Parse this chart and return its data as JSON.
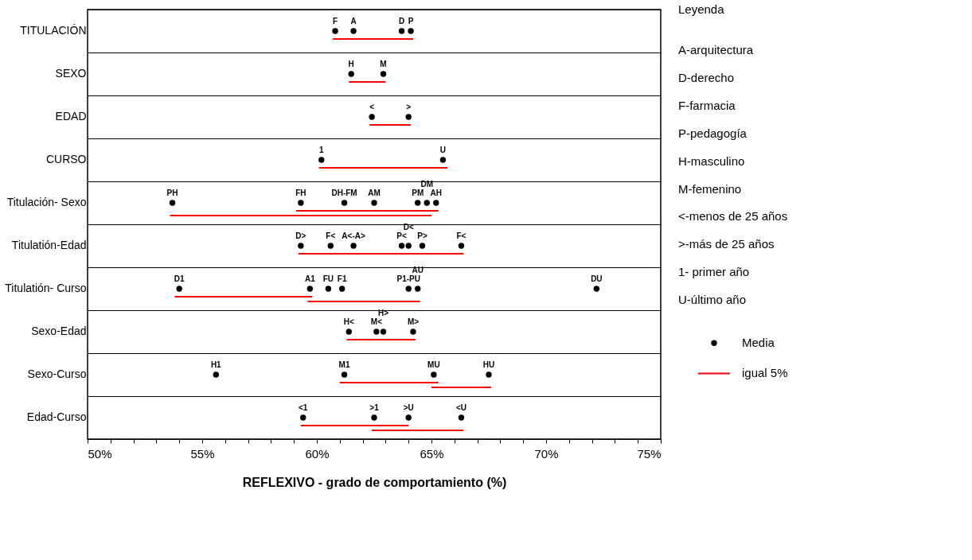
{
  "chart_data": {
    "type": "scatter",
    "orientation": "horizontal",
    "xlabel": "REFLEXIVO - grado de comportamiento (%)",
    "categories": [
      "TITULACIÓN",
      "SEXO",
      "EDAD",
      "CURSO",
      "Titulación- Sexo",
      "Titulatión-Edad",
      "Titulatión- Curso",
      "Sexo-Edad",
      "Sexo-Curso",
      "Edad-Curso"
    ],
    "xlim": [
      50,
      75
    ],
    "xticks": [
      {
        "value": 50,
        "label": "50%"
      },
      {
        "value": 51,
        "label": null
      },
      {
        "value": 52,
        "label": null
      },
      {
        "value": 53,
        "label": null
      },
      {
        "value": 54,
        "label": null
      },
      {
        "value": 55,
        "label": "55%"
      },
      {
        "value": 56,
        "label": null
      },
      {
        "value": 57,
        "label": null
      },
      {
        "value": 58,
        "label": null
      },
      {
        "value": 59,
        "label": null
      },
      {
        "value": 60,
        "label": "60%"
      },
      {
        "value": 61,
        "label": null
      },
      {
        "value": 62,
        "label": null
      },
      {
        "value": 63,
        "label": null
      },
      {
        "value": 64,
        "label": null
      },
      {
        "value": 65,
        "label": "65%"
      },
      {
        "value": 66,
        "label": null
      },
      {
        "value": 67,
        "label": null
      },
      {
        "value": 68,
        "label": null
      },
      {
        "value": 69,
        "label": null
      },
      {
        "value": 70,
        "label": "70%"
      },
      {
        "value": 71,
        "label": null
      },
      {
        "value": 72,
        "label": null
      },
      {
        "value": 73,
        "label": null
      },
      {
        "value": 74,
        "label": null
      },
      {
        "value": 75,
        "label": "75%"
      }
    ],
    "grid": "y",
    "legend": "right",
    "marker": "circle",
    "legend_title": "Leyenda",
    "annotations": [
      "A-arquitectura",
      "D-derecho",
      "F-farmacia",
      "P-pedagogía",
      "H-masculino",
      "M-femenino",
      "<-menos de 25 años",
      ">-más de  25 años",
      "1- primer año",
      "U-último año",
      {
        "text": "F",
        "x": 60.8,
        "y": "TITULACIÓN"
      },
      {
        "text": "A",
        "x": 61.6,
        "y": "TITULACIÓN"
      },
      {
        "text": "D",
        "x": 63.7,
        "y": "TITULACIÓN"
      },
      {
        "text": "P",
        "x": 64.1,
        "y": "TITULACIÓN"
      },
      {
        "text": "H",
        "x": 61.5,
        "y": "SEXO"
      },
      {
        "text": "M",
        "x": 62.9,
        "y": "SEXO"
      },
      {
        "text": "<",
        "x": 62.4,
        "y": "EDAD"
      },
      {
        "text": ">",
        "x": 64.0,
        "y": "EDAD"
      },
      {
        "text": "1",
        "x": 60.2,
        "y": "CURSO"
      },
      {
        "text": "U",
        "x": 65.5,
        "y": "CURSO"
      },
      {
        "text": "PH",
        "x": 53.7,
        "y": "Titulación- Sexo"
      },
      {
        "text": "FH",
        "x": 59.3,
        "y": "Titulación- Sexo"
      },
      {
        "text": "DH-FM",
        "x": 61.2,
        "y": "Titulación- Sexo"
      },
      {
        "text": "AM",
        "x": 62.5,
        "y": "Titulación- Sexo"
      },
      {
        "text": "PM",
        "x": 64.4,
        "y": "Titulación- Sexo"
      },
      {
        "text": "DM",
        "x": 64.8,
        "y": "Titulación- Sexo"
      },
      {
        "text": "AH",
        "x": 65.2,
        "y": "Titulación- Sexo"
      },
      {
        "text": "D>",
        "x": 59.3,
        "y": "Titulatión-Edad"
      },
      {
        "text": "F<",
        "x": 60.6,
        "y": "Titulatión-Edad"
      },
      {
        "text": "A<-A>",
        "x": 61.6,
        "y": "Titulatión-Edad"
      },
      {
        "text": "P<",
        "x": 63.7,
        "y": "Titulatión-Edad"
      },
      {
        "text": "D<",
        "x": 64.0,
        "y": "Titulatión-Edad"
      },
      {
        "text": "P>",
        "x": 64.6,
        "y": "Titulatión-Edad"
      },
      {
        "text": "F<",
        "x": 66.3,
        "y": "Titulatión-Edad"
      },
      {
        "text": "D1",
        "x": 54.0,
        "y": "Titulatión- Curso"
      },
      {
        "text": "A1",
        "x": 59.7,
        "y": "Titulatión- Curso"
      },
      {
        "text": "FU",
        "x": 60.5,
        "y": "Titulatión- Curso"
      },
      {
        "text": "F1",
        "x": 61.1,
        "y": "Titulatión- Curso"
      },
      {
        "text": "P1-PU",
        "x": 64.0,
        "y": "Titulatión- Curso"
      },
      {
        "text": "AU",
        "x": 64.4,
        "y": "Titulatión- Curso"
      },
      {
        "text": "DU",
        "x": 72.2,
        "y": "Titulatión- Curso"
      },
      {
        "text": "H<",
        "x": 61.4,
        "y": "Sexo-Edad"
      },
      {
        "text": "M<",
        "x": 62.6,
        "y": "Sexo-Edad"
      },
      {
        "text": "H>",
        "x": 62.9,
        "y": "Sexo-Edad"
      },
      {
        "text": "M>",
        "x": 64.2,
        "y": "Sexo-Edad"
      },
      {
        "text": "H1",
        "x": 55.6,
        "y": "Sexo-Curso"
      },
      {
        "text": "M1",
        "x": 61.2,
        "y": "Sexo-Curso"
      },
      {
        "text": "MU",
        "x": 65.1,
        "y": "Sexo-Curso"
      },
      {
        "text": "HU",
        "x": 67.5,
        "y": "Sexo-Curso"
      },
      {
        "text": "<1",
        "x": 59.4,
        "y": "Edad-Curso"
      },
      {
        "text": ">1",
        "x": 62.5,
        "y": "Edad-Curso"
      },
      {
        "text": ">U",
        "x": 64.0,
        "y": "Edad-Curso"
      },
      {
        "text": "<U",
        "x": 66.3,
        "y": "Edad-Curso"
      }
    ],
    "series": [
      {
        "name": "Media",
        "color": "#000000",
        "values": [
          60.8,
          61.5,
          62.4,
          60.2,
          53.7,
          59.3,
          54.0,
          61.4,
          55.6,
          59.4
        ]
      },
      {
        "color": "#000000",
        "values": [
          61.6,
          62.9,
          64.0,
          65.5,
          59.3,
          60.6,
          59.7,
          62.6,
          61.2,
          62.5
        ]
      },
      {
        "color": "#000000",
        "values": [
          63.7,
          null,
          null,
          null,
          61.2,
          61.6,
          60.5,
          62.9,
          65.1,
          64.0
        ]
      },
      {
        "color": "#000000",
        "values": [
          64.1,
          null,
          null,
          null,
          62.5,
          63.7,
          61.1,
          64.2,
          67.5,
          66.3
        ]
      },
      {
        "color": "#000000",
        "values": [
          null,
          null,
          null,
          null,
          64.4,
          64.0,
          64.0,
          null,
          null,
          null
        ]
      },
      {
        "color": "#000000",
        "values": [
          null,
          null,
          null,
          null,
          64.8,
          64.6,
          64.4,
          null,
          null,
          null
        ]
      },
      {
        "color": "#000000",
        "values": [
          null,
          null,
          null,
          null,
          65.2,
          66.3,
          72.2,
          null,
          null,
          null
        ]
      },
      {
        "name": "igual 5%",
        "type": "bar",
        "color": "#ff0000",
        "base": [
          60.7,
          61.4,
          62.3,
          60.1,
          59.1,
          59.2,
          53.8,
          61.3,
          61.0,
          59.3
        ],
        "values": [
          3.5,
          1.6,
          1.8,
          5.6,
          6.2,
          7.2,
          6.0,
          3.0,
          4.3,
          4.7
        ]
      },
      {
        "type": "bar",
        "color": "#ff0000",
        "base": [
          null,
          null,
          null,
          null,
          53.6,
          null,
          59.6,
          null,
          65.0,
          62.4
        ],
        "values": [
          null,
          null,
          null,
          null,
          11.4,
          null,
          4.9,
          null,
          2.6,
          4.0
        ]
      }
    ]
  }
}
